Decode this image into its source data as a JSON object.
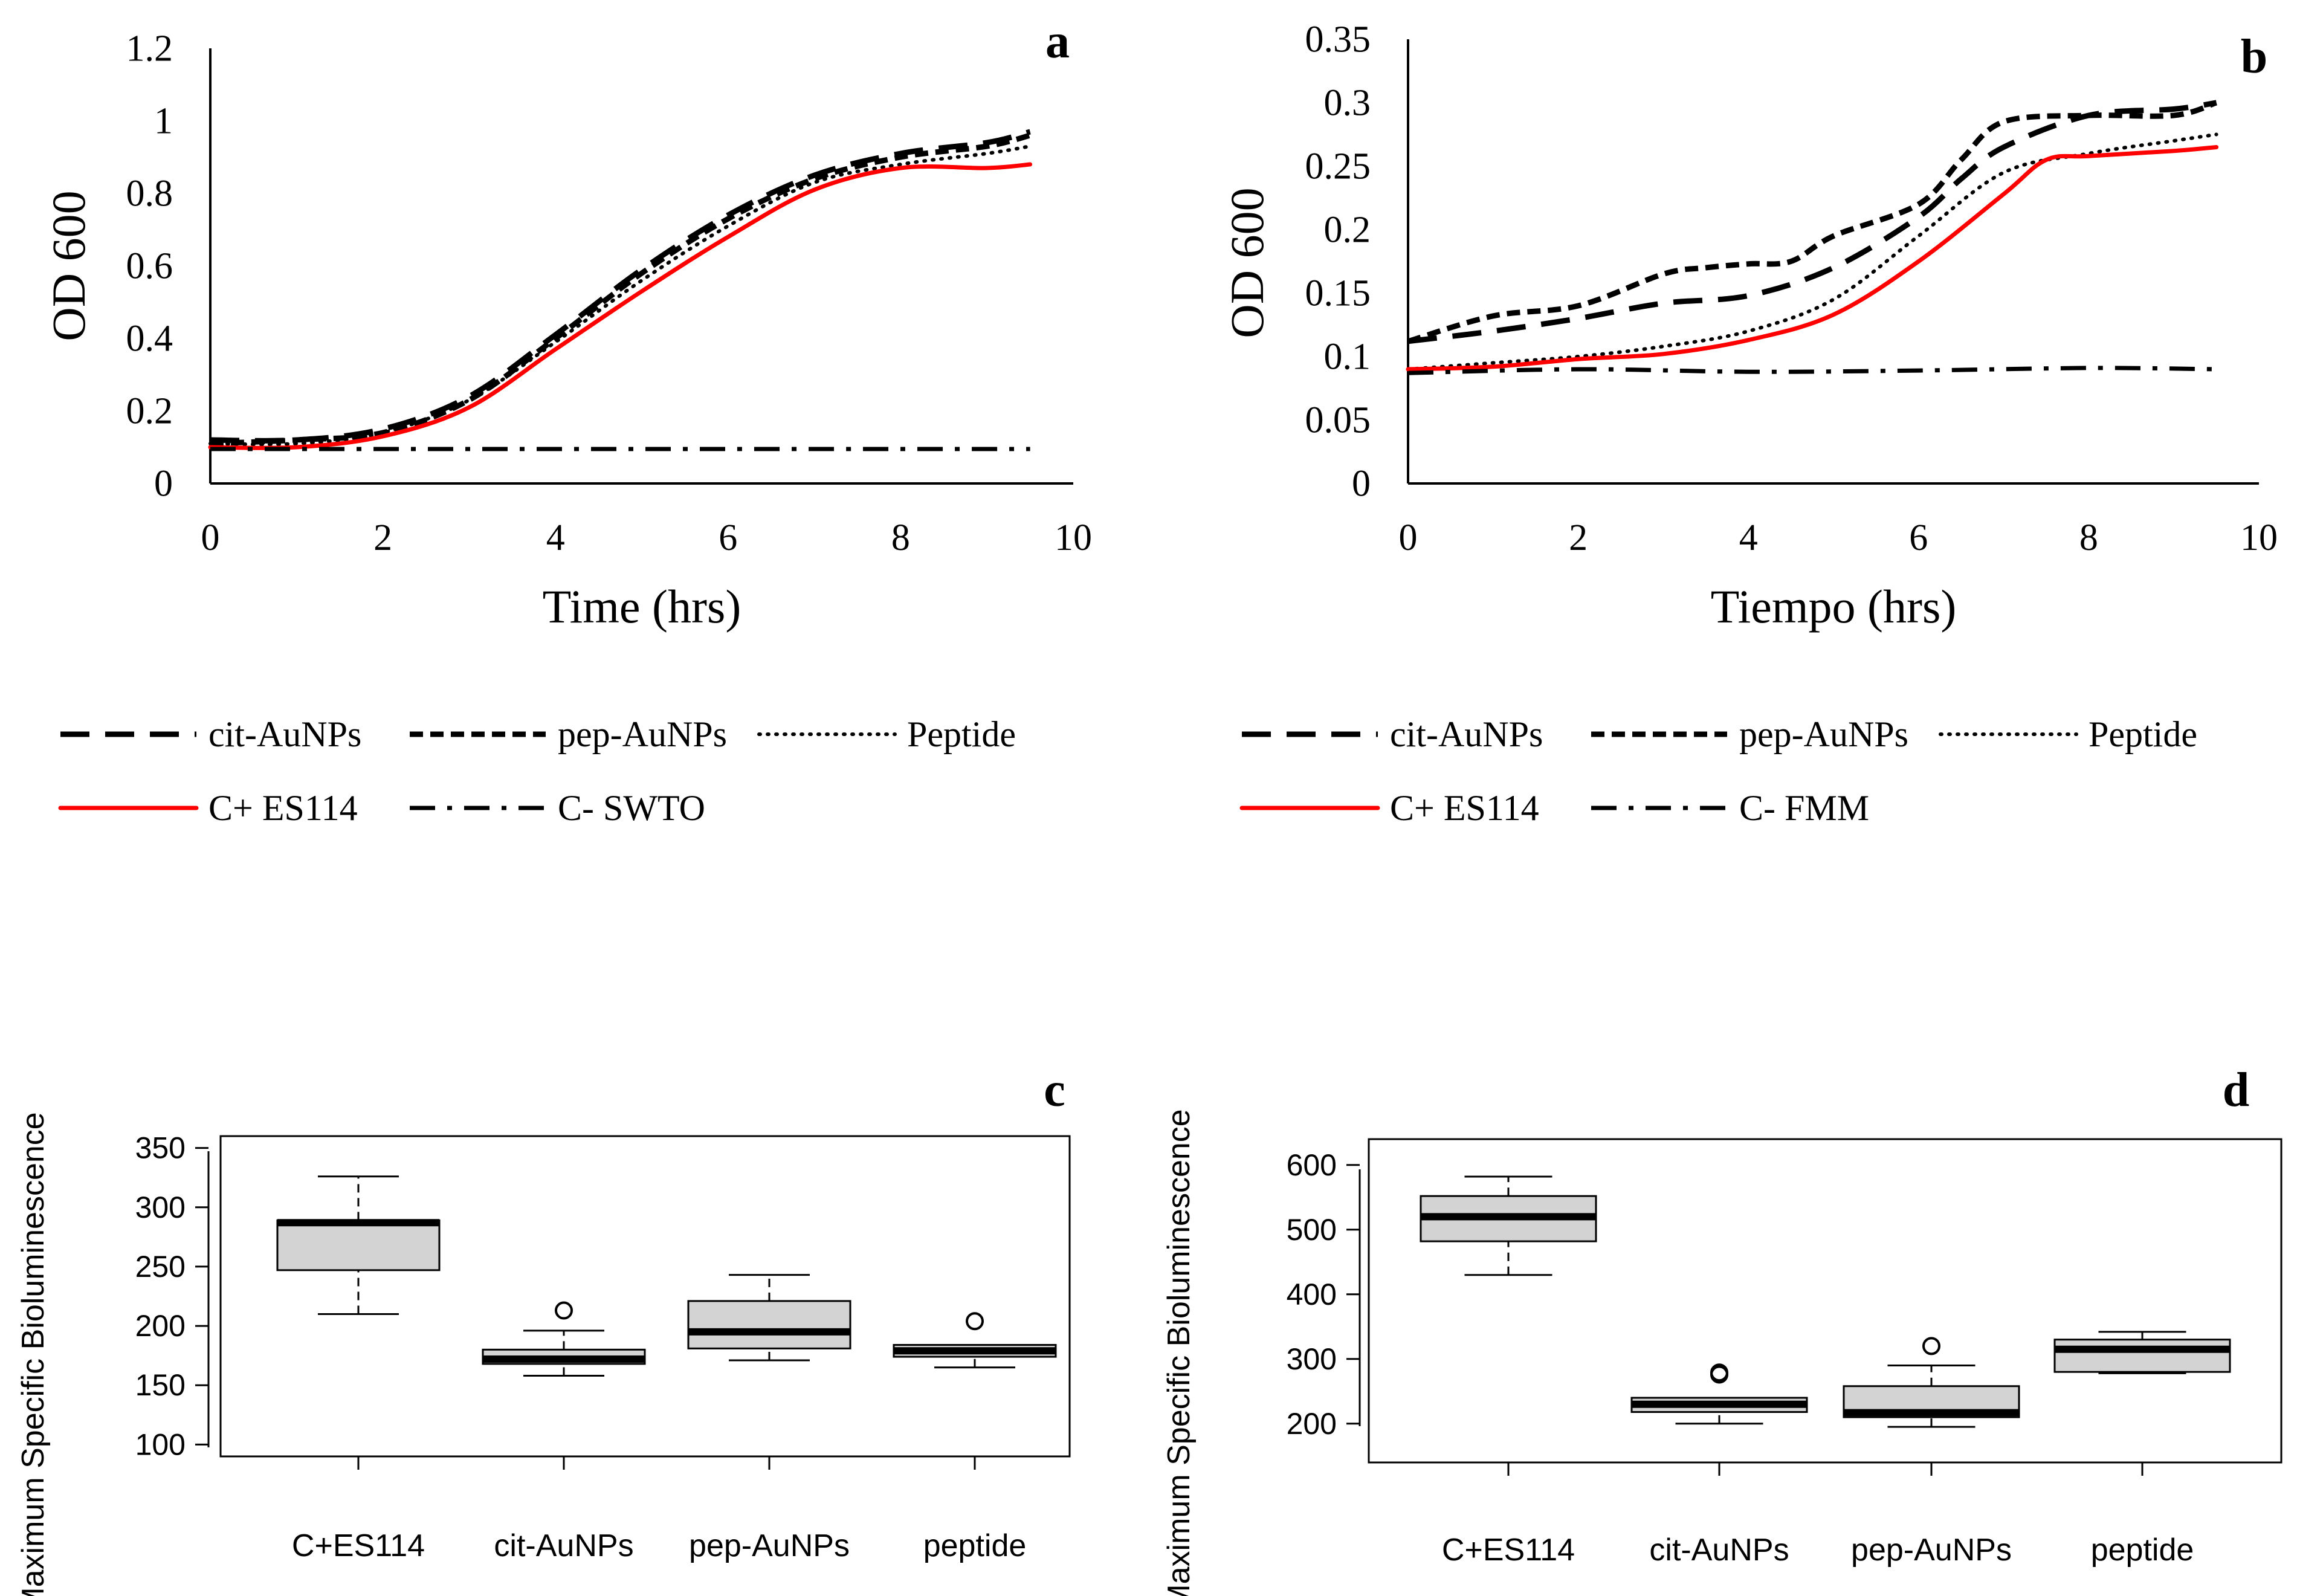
{
  "colors": {
    "axis": "#000000",
    "control_positive": "#ff0000",
    "line": "#000000",
    "box_fill": "#d3d3d3"
  },
  "chart_data": [
    {
      "panel": "a",
      "type": "line",
      "xlabel": "Time (hrs)",
      "ylabel": "OD 600",
      "xlim": [
        0,
        10
      ],
      "ylim": [
        0,
        1.2
      ],
      "xticks": [
        "0",
        "2",
        "4",
        "6",
        "8",
        "10"
      ],
      "yticks": [
        "0",
        "0.2",
        "0.4",
        "0.6",
        "0.8",
        "1",
        "1.2"
      ],
      "legend_rows": [
        [
          "cit-AuNPs",
          "pep-AuNPs",
          "Peptide"
        ],
        [
          "C+ ES114",
          "C- SWTO"
        ]
      ],
      "series": [
        {
          "name": "cit-AuNPs",
          "style": "longdash",
          "x": [
            0,
            1,
            2,
            3,
            4,
            5,
            6,
            7,
            8,
            9,
            9.5
          ],
          "y": [
            0.12,
            0.12,
            0.15,
            0.24,
            0.41,
            0.59,
            0.74,
            0.85,
            0.91,
            0.94,
            0.97
          ]
        },
        {
          "name": "pep-AuNPs",
          "style": "dash",
          "x": [
            0,
            1,
            2,
            3,
            4,
            5,
            6,
            7,
            8,
            9,
            9.5
          ],
          "y": [
            0.11,
            0.12,
            0.14,
            0.23,
            0.4,
            0.58,
            0.73,
            0.84,
            0.9,
            0.93,
            0.96
          ]
        },
        {
          "name": "Peptide",
          "style": "dot",
          "x": [
            0,
            1,
            2,
            3,
            4,
            5,
            6,
            7,
            8,
            9,
            9.5
          ],
          "y": [
            0.11,
            0.11,
            0.14,
            0.23,
            0.39,
            0.56,
            0.71,
            0.83,
            0.88,
            0.91,
            0.93
          ]
        },
        {
          "name": "C+ ES114",
          "style": "solid-red",
          "x": [
            0,
            1,
            2,
            3,
            4,
            5,
            6,
            7,
            8,
            9,
            9.5
          ],
          "y": [
            0.1,
            0.1,
            0.13,
            0.21,
            0.37,
            0.53,
            0.68,
            0.81,
            0.87,
            0.87,
            0.88
          ]
        },
        {
          "name": "C- SWTO",
          "style": "dashdot",
          "x": [
            0,
            2,
            4,
            6,
            8,
            9.5
          ],
          "y": [
            0.095,
            0.095,
            0.095,
            0.095,
            0.095,
            0.095
          ]
        }
      ]
    },
    {
      "panel": "b",
      "type": "line",
      "xlabel": "Tiempo (hrs)",
      "ylabel": "OD 600",
      "xlim": [
        0,
        10
      ],
      "ylim": [
        0,
        0.35
      ],
      "xticks": [
        "0",
        "2",
        "4",
        "6",
        "8",
        "10"
      ],
      "yticks": [
        "0",
        "0.05",
        "0.1",
        "0.15",
        "0.2",
        "0.25",
        "0.3",
        "0.35"
      ],
      "legend_rows": [
        [
          "cit-AuNPs",
          "pep-AuNPs",
          "Peptide"
        ],
        [
          "C+ ES114",
          "C- FMM"
        ]
      ],
      "series": [
        {
          "name": "cit-AuNPs",
          "style": "longdash",
          "x": [
            0,
            1,
            2,
            3,
            4,
            5,
            6,
            6.5,
            7,
            8,
            9,
            9.5
          ],
          "y": [
            0.112,
            0.12,
            0.13,
            0.142,
            0.148,
            0.17,
            0.21,
            0.24,
            0.265,
            0.29,
            0.295,
            0.3
          ]
        },
        {
          "name": "pep-AuNPs",
          "style": "dash",
          "x": [
            0,
            1,
            2,
            3,
            3.5,
            4,
            4.5,
            5,
            6,
            6.5,
            7,
            8,
            9,
            9.5
          ],
          "y": [
            0.112,
            0.132,
            0.14,
            0.165,
            0.17,
            0.173,
            0.175,
            0.195,
            0.22,
            0.255,
            0.285,
            0.29,
            0.29,
            0.3
          ]
        },
        {
          "name": "Peptide",
          "style": "dot",
          "x": [
            0,
            1,
            2,
            3,
            4,
            5,
            6,
            7,
            8,
            9,
            9.5
          ],
          "y": [
            0.09,
            0.095,
            0.1,
            0.108,
            0.12,
            0.145,
            0.195,
            0.245,
            0.26,
            0.27,
            0.275
          ]
        },
        {
          "name": "C+ ES114",
          "style": "solid-red",
          "x": [
            0,
            1,
            2,
            3,
            4,
            5,
            6,
            7,
            7.5,
            8,
            9,
            9.5
          ],
          "y": [
            0.09,
            0.092,
            0.098,
            0.102,
            0.113,
            0.133,
            0.175,
            0.228,
            0.255,
            0.258,
            0.262,
            0.265
          ]
        },
        {
          "name": "C- FMM",
          "style": "dashdot",
          "x": [
            0,
            2,
            4,
            6,
            8,
            9.5
          ],
          "y": [
            0.087,
            0.09,
            0.088,
            0.089,
            0.091,
            0.09
          ]
        }
      ]
    },
    {
      "panel": "c",
      "type": "box",
      "ylabel": "Maximum Specific Bioluminescence",
      "ylim": [
        90,
        360
      ],
      "yticks": [
        100,
        150,
        200,
        250,
        300,
        350
      ],
      "categories": [
        "C+ES114",
        "cit-AuNPs",
        "pep-AuNPs",
        "peptide"
      ],
      "boxes": [
        {
          "whisker_low": 210,
          "q1": 247,
          "median": 287,
          "q3": 289,
          "whisker_high": 326,
          "outliers": []
        },
        {
          "whisker_low": 158,
          "q1": 168,
          "median": 172,
          "q3": 180,
          "whisker_high": 196,
          "outliers": [
            213
          ]
        },
        {
          "whisker_low": 171,
          "q1": 181,
          "median": 195,
          "q3": 221,
          "whisker_high": 243,
          "outliers": []
        },
        {
          "whisker_low": 165,
          "q1": 174,
          "median": 179,
          "q3": 184,
          "whisker_high": 184,
          "outliers": [
            204
          ]
        }
      ]
    },
    {
      "panel": "d",
      "type": "box",
      "ylabel": "Maximum Specific Bioluminescence",
      "ylim": [
        140,
        640
      ],
      "yticks": [
        200,
        300,
        400,
        500,
        600
      ],
      "categories": [
        "C+ES114",
        "cit-AuNPs",
        "pep-AuNPs",
        "peptide"
      ],
      "boxes": [
        {
          "whisker_low": 430,
          "q1": 482,
          "median": 520,
          "q3": 552,
          "whisker_high": 582,
          "outliers": []
        },
        {
          "whisker_low": 200,
          "q1": 218,
          "median": 230,
          "q3": 240,
          "whisker_high": 240,
          "outliers": [
            276,
            279
          ]
        },
        {
          "whisker_low": 195,
          "q1": 210,
          "median": 217,
          "q3": 258,
          "whisker_high": 290,
          "outliers": [
            320
          ]
        },
        {
          "whisker_low": 278,
          "q1": 280,
          "median": 315,
          "q3": 330,
          "whisker_high": 342,
          "outliers": []
        }
      ]
    }
  ]
}
